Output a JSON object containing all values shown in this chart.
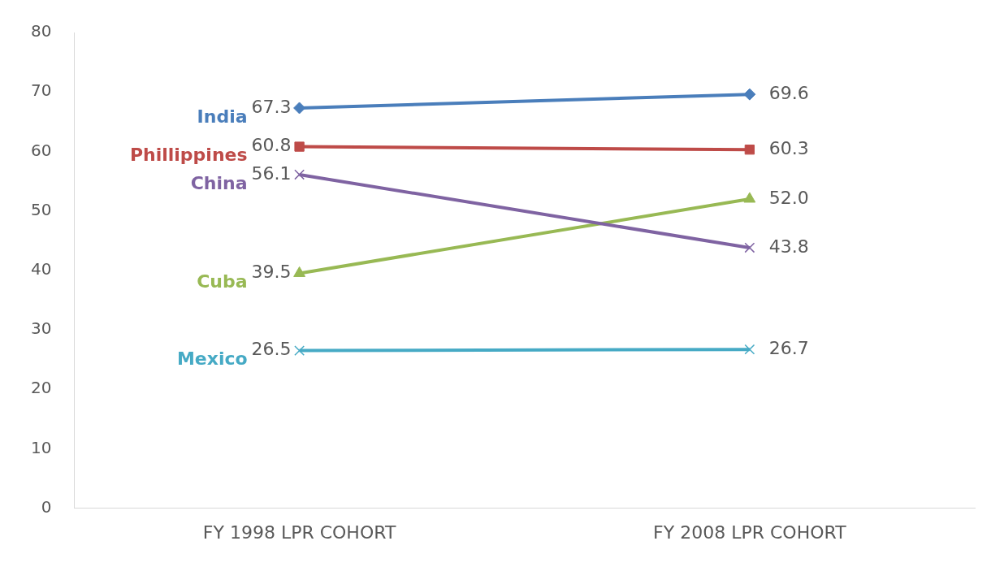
{
  "chart_data": {
    "type": "line",
    "categories": [
      "FY 1998 LPR COHORT",
      "FY 2008 LPR COHORT"
    ],
    "series": [
      {
        "name": "India",
        "color": "#4a7ebb",
        "values": [
          67.3,
          69.6
        ],
        "value_labels": [
          "67.3",
          "69.6"
        ],
        "marker": "diamond"
      },
      {
        "name": "Phillippines",
        "color": "#be4b48",
        "values": [
          60.8,
          60.3
        ],
        "value_labels": [
          "60.8",
          "60.3"
        ],
        "marker": "square"
      },
      {
        "name": "China",
        "color": "#7f63a2",
        "values": [
          56.1,
          43.8
        ],
        "value_labels": [
          "56.1",
          "43.8"
        ],
        "marker": "cross"
      },
      {
        "name": "Cuba",
        "color": "#98b954",
        "values": [
          39.5,
          52.0
        ],
        "value_labels": [
          "39.5",
          "52.0"
        ],
        "marker": "triangle"
      },
      {
        "name": "Mexico",
        "color": "#46aac5",
        "values": [
          26.5,
          26.7
        ],
        "value_labels": [
          "26.5",
          "26.7"
        ],
        "marker": "cross"
      }
    ],
    "ylim": [
      0,
      80
    ],
    "yticks": [
      0,
      10,
      20,
      30,
      40,
      50,
      60,
      70,
      80
    ],
    "grid": false,
    "legend": false
  }
}
